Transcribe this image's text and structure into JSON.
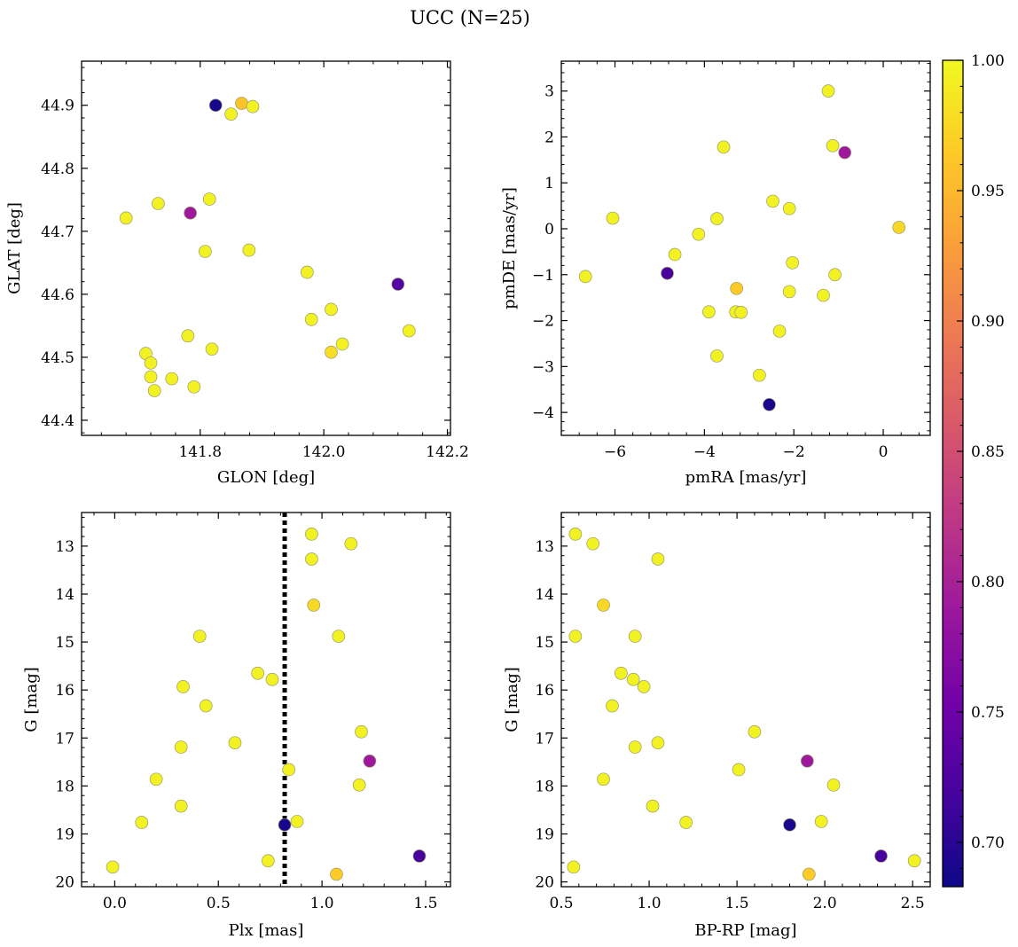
{
  "figure": {
    "title": "UCC (N=25)"
  },
  "colormap": {
    "name": "plasma",
    "range": [
      0.683,
      1.0
    ],
    "ticks": [
      "0.70",
      "0.75",
      "0.80",
      "0.85",
      "0.90",
      "0.95",
      "1.00"
    ],
    "tick_values": [
      0.7,
      0.75,
      0.8,
      0.85,
      0.9,
      0.95,
      1.0
    ],
    "stops": [
      "#0d0887",
      "#46039f",
      "#7201a8",
      "#9c179e",
      "#bd3786",
      "#d8576b",
      "#ed7953",
      "#fb9f3a",
      "#fdca26",
      "#f0f921"
    ]
  },
  "chart_data": [
    {
      "type": "scatter",
      "id": "sky",
      "xlabel": "GLON [deg]",
      "ylabel": "GLAT [deg]",
      "xlim": [
        141.608,
        142.205
      ],
      "ylim": [
        44.376,
        44.97
      ],
      "xticks": [
        141.8,
        142.0,
        142.2
      ],
      "xtick_labels": [
        "141.8",
        "142.0",
        "142.2"
      ],
      "yticks": [
        44.4,
        44.5,
        44.6,
        44.7,
        44.8,
        44.9
      ],
      "ytick_labels": [
        "44.4",
        "44.5",
        "44.6",
        "44.7",
        "44.8",
        "44.9"
      ],
      "invert_y": false,
      "points": [
        {
          "x": 141.825,
          "y": 44.9,
          "c": 0.69
        },
        {
          "x": 141.867,
          "y": 44.903,
          "c": 0.96
        },
        {
          "x": 141.85,
          "y": 44.886,
          "c": 0.995
        },
        {
          "x": 141.885,
          "y": 44.898,
          "c": 0.995
        },
        {
          "x": 141.68,
          "y": 44.721,
          "c": 0.995
        },
        {
          "x": 141.732,
          "y": 44.744,
          "c": 0.995
        },
        {
          "x": 141.784,
          "y": 44.729,
          "c": 0.79
        },
        {
          "x": 141.815,
          "y": 44.751,
          "c": 0.995
        },
        {
          "x": 141.808,
          "y": 44.668,
          "c": 0.995
        },
        {
          "x": 141.879,
          "y": 44.67,
          "c": 0.995
        },
        {
          "x": 141.973,
          "y": 44.635,
          "c": 0.995
        },
        {
          "x": 142.12,
          "y": 44.616,
          "c": 0.73
        },
        {
          "x": 141.98,
          "y": 44.56,
          "c": 0.995
        },
        {
          "x": 142.012,
          "y": 44.576,
          "c": 0.995
        },
        {
          "x": 142.03,
          "y": 44.521,
          "c": 0.995
        },
        {
          "x": 142.012,
          "y": 44.508,
          "c": 0.98
        },
        {
          "x": 142.138,
          "y": 44.542,
          "c": 0.995
        },
        {
          "x": 141.78,
          "y": 44.534,
          "c": 0.995
        },
        {
          "x": 141.819,
          "y": 44.513,
          "c": 0.995
        },
        {
          "x": 141.712,
          "y": 44.506,
          "c": 0.995
        },
        {
          "x": 141.72,
          "y": 44.491,
          "c": 0.995
        },
        {
          "x": 141.72,
          "y": 44.469,
          "c": 0.995
        },
        {
          "x": 141.754,
          "y": 44.466,
          "c": 0.995
        },
        {
          "x": 141.726,
          "y": 44.447,
          "c": 0.995
        },
        {
          "x": 141.79,
          "y": 44.453,
          "c": 0.995
        }
      ]
    },
    {
      "type": "scatter",
      "id": "pm",
      "xlabel": "pmRA [mas/yr]",
      "ylabel": "pmDE [mas/yr]",
      "xlim": [
        -7.2,
        1.05
      ],
      "ylim": [
        -4.5,
        3.65
      ],
      "xticks": [
        -6,
        -4,
        -2,
        0
      ],
      "xtick_labels": [
        "−6",
        "−4",
        "−2",
        "0"
      ],
      "yticks": [
        -4,
        -3,
        -2,
        -1,
        0,
        1,
        2,
        3
      ],
      "ytick_labels": [
        "−4",
        "−3",
        "−2",
        "−1",
        "0",
        "1",
        "2",
        "3"
      ],
      "invert_y": false,
      "points": [
        {
          "x": -1.23,
          "y": 3.0,
          "c": 0.995
        },
        {
          "x": -3.57,
          "y": 1.78,
          "c": 0.995
        },
        {
          "x": -1.13,
          "y": 1.81,
          "c": 0.995
        },
        {
          "x": -0.86,
          "y": 1.66,
          "c": 0.79
        },
        {
          "x": -6.05,
          "y": 0.23,
          "c": 0.995
        },
        {
          "x": -3.72,
          "y": 0.22,
          "c": 0.995
        },
        {
          "x": -2.47,
          "y": 0.6,
          "c": 0.995
        },
        {
          "x": -2.1,
          "y": 0.44,
          "c": 0.995
        },
        {
          "x": -4.13,
          "y": -0.12,
          "c": 0.995
        },
        {
          "x": 0.35,
          "y": 0.03,
          "c": 0.975
        },
        {
          "x": -4.66,
          "y": -0.56,
          "c": 0.995
        },
        {
          "x": -6.66,
          "y": -1.04,
          "c": 0.995
        },
        {
          "x": -4.83,
          "y": -0.97,
          "c": 0.72
        },
        {
          "x": -2.03,
          "y": -0.74,
          "c": 0.995
        },
        {
          "x": -1.08,
          "y": -1.0,
          "c": 0.995
        },
        {
          "x": -3.28,
          "y": -1.3,
          "c": 0.965
        },
        {
          "x": -2.1,
          "y": -1.37,
          "c": 0.995
        },
        {
          "x": -1.34,
          "y": -1.45,
          "c": 0.995
        },
        {
          "x": -3.9,
          "y": -1.81,
          "c": 0.995
        },
        {
          "x": -3.3,
          "y": -1.81,
          "c": 0.995
        },
        {
          "x": -3.18,
          "y": -1.82,
          "c": 0.995
        },
        {
          "x": -2.32,
          "y": -2.23,
          "c": 0.995
        },
        {
          "x": -3.72,
          "y": -2.77,
          "c": 0.995
        },
        {
          "x": -2.77,
          "y": -3.19,
          "c": 0.995
        },
        {
          "x": -2.55,
          "y": -3.83,
          "c": 0.69
        }
      ]
    },
    {
      "type": "scatter",
      "id": "plx",
      "xlabel": "Plx [mas]",
      "ylabel": "G [mag]",
      "xlim": [
        -0.16,
        1.62
      ],
      "ylim": [
        12.3,
        20.1
      ],
      "xticks": [
        0.0,
        0.5,
        1.0,
        1.5
      ],
      "xtick_labels": [
        "0.0",
        "0.5",
        "1.0",
        "1.5"
      ],
      "yticks": [
        13,
        14,
        15,
        16,
        17,
        18,
        19,
        20
      ],
      "ytick_labels": [
        "13",
        "14",
        "15",
        "16",
        "17",
        "18",
        "19",
        "20"
      ],
      "invert_y": true,
      "vline": {
        "x": 0.82,
        "style": "dotted"
      },
      "points": [
        {
          "x": 0.95,
          "y": 12.75,
          "c": 0.995
        },
        {
          "x": 1.14,
          "y": 12.95,
          "c": 0.995
        },
        {
          "x": 0.95,
          "y": 13.27,
          "c": 0.995
        },
        {
          "x": 0.96,
          "y": 14.23,
          "c": 0.975
        },
        {
          "x": 0.41,
          "y": 14.88,
          "c": 0.995
        },
        {
          "x": 1.08,
          "y": 14.88,
          "c": 0.995
        },
        {
          "x": 0.69,
          "y": 15.65,
          "c": 0.995
        },
        {
          "x": 0.76,
          "y": 15.78,
          "c": 0.995
        },
        {
          "x": 0.33,
          "y": 15.93,
          "c": 0.995
        },
        {
          "x": 0.44,
          "y": 16.33,
          "c": 0.995
        },
        {
          "x": 1.19,
          "y": 16.87,
          "c": 0.995
        },
        {
          "x": 0.58,
          "y": 17.1,
          "c": 0.995
        },
        {
          "x": 0.32,
          "y": 17.19,
          "c": 0.995
        },
        {
          "x": 1.23,
          "y": 17.48,
          "c": 0.79
        },
        {
          "x": 0.84,
          "y": 17.66,
          "c": 0.995
        },
        {
          "x": 0.2,
          "y": 17.86,
          "c": 0.995
        },
        {
          "x": 1.18,
          "y": 17.98,
          "c": 0.995
        },
        {
          "x": 0.32,
          "y": 18.42,
          "c": 0.995
        },
        {
          "x": 0.13,
          "y": 18.76,
          "c": 0.995
        },
        {
          "x": 0.88,
          "y": 18.74,
          "c": 0.995
        },
        {
          "x": 0.82,
          "y": 18.81,
          "c": 0.69
        },
        {
          "x": 1.47,
          "y": 19.46,
          "c": 0.72
        },
        {
          "x": 0.74,
          "y": 19.56,
          "c": 0.995
        },
        {
          "x": -0.01,
          "y": 19.69,
          "c": 0.995
        },
        {
          "x": 1.07,
          "y": 19.84,
          "c": 0.965
        }
      ]
    },
    {
      "type": "scatter",
      "id": "cmd",
      "xlabel": "BP-RP [mag]",
      "ylabel": "G [mag]",
      "xlim": [
        0.5,
        2.6
      ],
      "ylim": [
        12.3,
        20.1
      ],
      "xticks": [
        0.5,
        1.0,
        1.5,
        2.0,
        2.5
      ],
      "xtick_labels": [
        "0.5",
        "1.0",
        "1.5",
        "2.0",
        "2.5"
      ],
      "yticks": [
        13,
        14,
        15,
        16,
        17,
        18,
        19,
        20
      ],
      "ytick_labels": [
        "13",
        "14",
        "15",
        "16",
        "17",
        "18",
        "19",
        "20"
      ],
      "invert_y": true,
      "points": [
        {
          "x": 0.58,
          "y": 12.75,
          "c": 0.995
        },
        {
          "x": 0.68,
          "y": 12.95,
          "c": 0.995
        },
        {
          "x": 1.05,
          "y": 13.27,
          "c": 0.995
        },
        {
          "x": 0.74,
          "y": 14.23,
          "c": 0.975
        },
        {
          "x": 0.58,
          "y": 14.88,
          "c": 0.995
        },
        {
          "x": 0.92,
          "y": 14.88,
          "c": 0.995
        },
        {
          "x": 0.84,
          "y": 15.65,
          "c": 0.995
        },
        {
          "x": 0.91,
          "y": 15.78,
          "c": 0.995
        },
        {
          "x": 0.97,
          "y": 15.93,
          "c": 0.995
        },
        {
          "x": 0.79,
          "y": 16.33,
          "c": 0.995
        },
        {
          "x": 1.6,
          "y": 16.87,
          "c": 0.995
        },
        {
          "x": 1.05,
          "y": 17.1,
          "c": 0.995
        },
        {
          "x": 0.92,
          "y": 17.19,
          "c": 0.995
        },
        {
          "x": 1.9,
          "y": 17.48,
          "c": 0.79
        },
        {
          "x": 1.51,
          "y": 17.66,
          "c": 0.995
        },
        {
          "x": 0.74,
          "y": 17.86,
          "c": 0.995
        },
        {
          "x": 2.05,
          "y": 17.98,
          "c": 0.995
        },
        {
          "x": 1.02,
          "y": 18.42,
          "c": 0.995
        },
        {
          "x": 1.21,
          "y": 18.76,
          "c": 0.995
        },
        {
          "x": 1.98,
          "y": 18.74,
          "c": 0.995
        },
        {
          "x": 1.8,
          "y": 18.81,
          "c": 0.69
        },
        {
          "x": 2.32,
          "y": 19.46,
          "c": 0.72
        },
        {
          "x": 2.51,
          "y": 19.56,
          "c": 0.995
        },
        {
          "x": 0.57,
          "y": 19.69,
          "c": 0.995
        },
        {
          "x": 1.91,
          "y": 19.84,
          "c": 0.965
        }
      ]
    }
  ]
}
